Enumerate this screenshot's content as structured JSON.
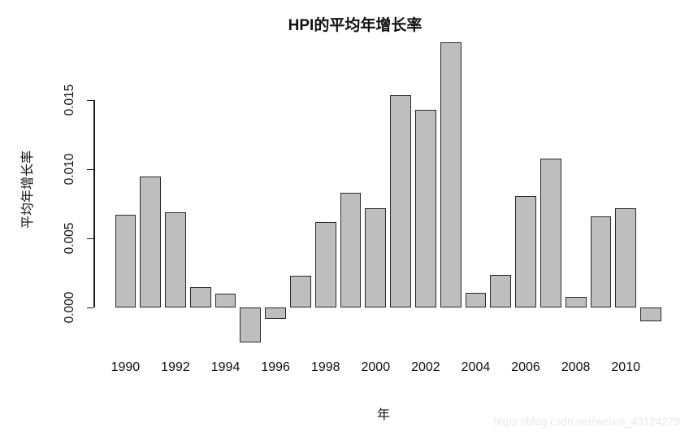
{
  "chart_data": {
    "type": "bar",
    "title": "HPI的平均年增长率",
    "xlabel": "年",
    "ylabel": "平均年增长率",
    "categories": [
      "1990",
      "1991",
      "1992",
      "1993",
      "1994",
      "1995",
      "1996",
      "1997",
      "1998",
      "1999",
      "2000",
      "2001",
      "2002",
      "2003",
      "2004",
      "2005",
      "2006",
      "2007",
      "2008",
      "2009",
      "2010",
      "2011"
    ],
    "values": [
      0.0067,
      0.0095,
      0.0069,
      0.0015,
      0.001,
      -0.0025,
      -0.0008,
      0.0023,
      0.0062,
      0.0083,
      0.0072,
      0.0154,
      0.0143,
      0.0192,
      0.0011,
      0.0024,
      0.0081,
      0.0108,
      0.0008,
      0.0066,
      0.0072,
      -0.001
    ],
    "x_tick_labels": [
      "1990",
      "1992",
      "1994",
      "1996",
      "1998",
      "2000",
      "2002",
      "2004",
      "2006",
      "2008",
      "2010"
    ],
    "ytick_values": [
      0,
      0.005,
      0.01,
      0.015
    ],
    "ytick_labels": [
      "0.000",
      "0.005",
      "0.010",
      "0.015"
    ],
    "ylim": [
      -0.0025,
      0.0192
    ],
    "grid": "off",
    "legend": "none",
    "bar_color": "#bebebe",
    "bar_border": "#2b2b2b",
    "axis_color": "#1a1a1a"
  },
  "watermark": {
    "text": "https://blog.csdn.net/weixin_43124279",
    "color": "#e8e8e8"
  }
}
